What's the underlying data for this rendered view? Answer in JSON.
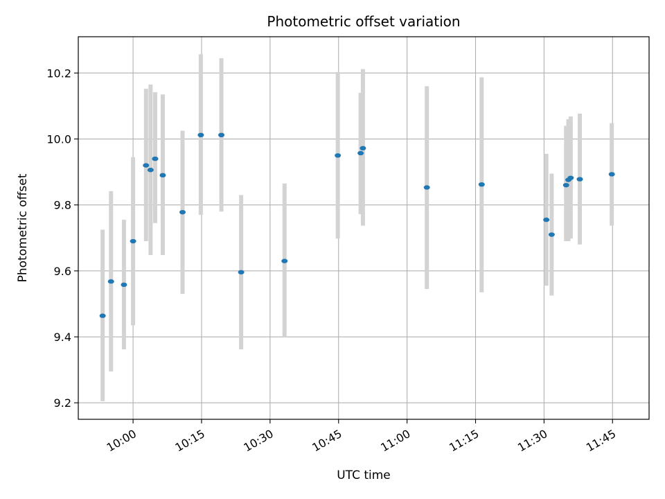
{
  "chart_data": {
    "type": "scatter",
    "title": "Photometric offset variation",
    "xlabel": "UTC time",
    "ylabel": "Photometric offset",
    "x_tick_labels": [
      "10:00",
      "10:15",
      "10:30",
      "10:45",
      "11:00",
      "11:15",
      "11:30",
      "11:45"
    ],
    "y_tick_labels": [
      "9.2",
      "9.4",
      "9.6",
      "9.8",
      "10.0",
      "10.2"
    ],
    "xlim": [
      "09:48",
      "11:53"
    ],
    "ylim": [
      9.15,
      10.31
    ],
    "grid": true,
    "points": [
      {
        "time": "09:53:20",
        "y": 9.464,
        "low": 9.205,
        "high": 9.725
      },
      {
        "time": "09:55:10",
        "y": 9.568,
        "low": 9.295,
        "high": 9.842
      },
      {
        "time": "09:58:00",
        "y": 9.558,
        "low": 9.362,
        "high": 9.755
      },
      {
        "time": "10:00:00",
        "y": 9.69,
        "low": 9.435,
        "high": 9.945
      },
      {
        "time": "10:02:50",
        "y": 9.92,
        "low": 9.69,
        "high": 10.152
      },
      {
        "time": "10:03:50",
        "y": 9.906,
        "low": 9.648,
        "high": 10.165
      },
      {
        "time": "10:04:50",
        "y": 9.94,
        "low": 9.745,
        "high": 10.142
      },
      {
        "time": "10:06:30",
        "y": 9.89,
        "low": 9.648,
        "high": 10.135
      },
      {
        "time": "10:10:50",
        "y": 9.778,
        "low": 9.53,
        "high": 10.025
      },
      {
        "time": "10:14:50",
        "y": 10.012,
        "low": 9.77,
        "high": 10.257
      },
      {
        "time": "10:19:20",
        "y": 10.012,
        "low": 9.78,
        "high": 10.245
      },
      {
        "time": "10:23:40",
        "y": 9.596,
        "low": 9.362,
        "high": 9.83
      },
      {
        "time": "10:33:10",
        "y": 9.63,
        "low": 9.398,
        "high": 9.865
      },
      {
        "time": "10:44:50",
        "y": 9.95,
        "low": 9.698,
        "high": 10.203
      },
      {
        "time": "10:49:50",
        "y": 9.957,
        "low": 9.772,
        "high": 10.14
      },
      {
        "time": "10:50:20",
        "y": 9.972,
        "low": 9.737,
        "high": 10.212
      },
      {
        "time": "11:04:20",
        "y": 9.853,
        "low": 9.545,
        "high": 10.16
      },
      {
        "time": "11:16:20",
        "y": 9.862,
        "low": 9.535,
        "high": 10.187
      },
      {
        "time": "11:30:30",
        "y": 9.755,
        "low": 9.555,
        "high": 9.955
      },
      {
        "time": "11:31:40",
        "y": 9.71,
        "low": 9.525,
        "high": 9.895
      },
      {
        "time": "11:34:50",
        "y": 9.86,
        "low": 9.69,
        "high": 10.04
      },
      {
        "time": "11:35:20",
        "y": 9.876,
        "low": 9.69,
        "high": 10.06
      },
      {
        "time": "11:35:50",
        "y": 9.882,
        "low": 9.698,
        "high": 10.068
      },
      {
        "time": "11:37:50",
        "y": 9.878,
        "low": 9.68,
        "high": 10.077
      },
      {
        "time": "11:44:50",
        "y": 9.893,
        "low": 9.737,
        "high": 10.048
      }
    ],
    "colors": {
      "marker": "#1f77b4",
      "errorbar": "#d3d3d3",
      "grid": "#b0b0b0",
      "axes": "#000000"
    }
  }
}
